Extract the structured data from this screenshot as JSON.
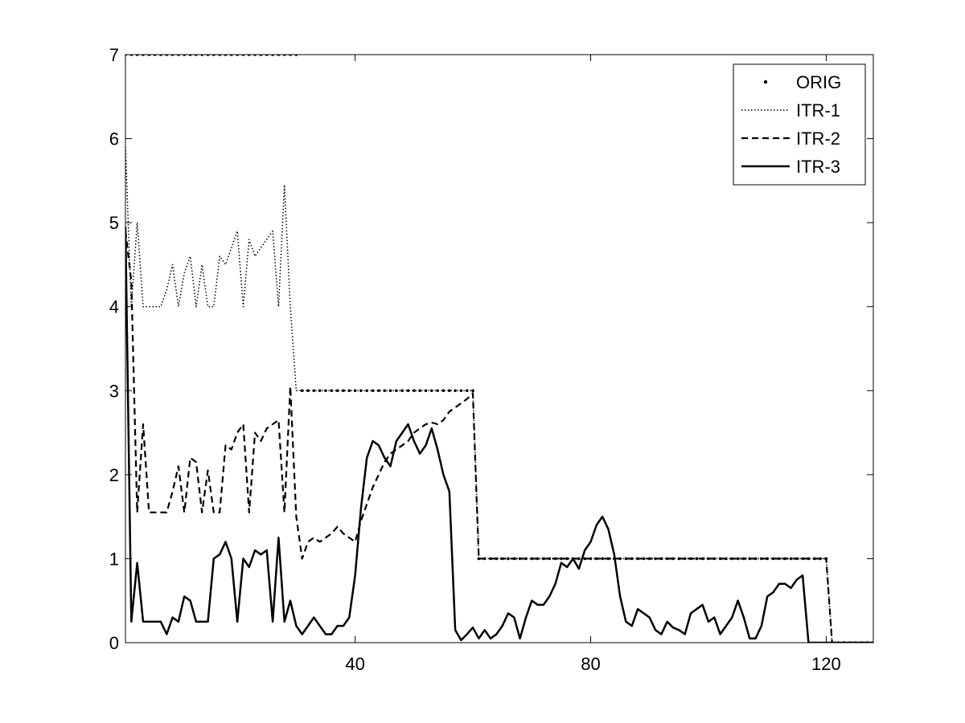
{
  "chart_data": {
    "type": "line",
    "title": "",
    "xlabel": "",
    "ylabel": "",
    "xlim": [
      1,
      128
    ],
    "ylim": [
      0,
      7
    ],
    "x_ticks": [
      40,
      80,
      120
    ],
    "x_tick_labels": [
      "40",
      "80",
      "120"
    ],
    "y_ticks": [
      0,
      1,
      2,
      3,
      4,
      5,
      6,
      7
    ],
    "y_tick_labels": [
      "0",
      "1",
      "2",
      "3",
      "4",
      "5",
      "6",
      "7"
    ],
    "grid": false,
    "legend_position": "top-right",
    "series": [
      {
        "name": "ORIG",
        "style": "dots",
        "color": "#000000",
        "x": [
          1,
          2,
          3,
          4,
          5,
          6,
          7,
          8,
          9,
          10,
          11,
          12,
          13,
          14,
          15,
          16,
          17,
          18,
          19,
          20,
          21,
          22,
          23,
          24,
          25,
          26,
          27,
          28,
          29,
          30,
          31,
          32,
          33,
          34,
          35,
          36,
          37,
          38,
          39,
          40,
          41,
          42,
          43,
          44,
          45,
          46,
          47,
          48,
          49,
          50,
          51,
          52,
          53,
          54,
          55,
          56,
          57,
          58,
          59,
          60,
          61,
          62,
          63,
          64,
          65,
          66,
          67,
          68,
          69,
          70,
          71,
          72,
          73,
          74,
          75,
          76,
          77,
          78,
          79,
          80,
          81,
          82,
          83,
          84,
          85,
          86,
          87,
          88,
          89,
          90,
          91,
          92,
          93,
          94,
          95,
          96,
          97,
          98,
          99,
          100,
          101,
          102,
          103,
          104,
          105,
          106,
          107,
          108,
          109,
          110,
          111,
          112,
          113,
          114,
          115,
          116,
          117,
          118,
          119,
          120,
          121,
          122,
          123,
          124,
          125,
          126,
          127,
          128
        ],
        "y": [
          7,
          7,
          7,
          7,
          7,
          7,
          7,
          7,
          7,
          7,
          7,
          7,
          7,
          7,
          7,
          7,
          7,
          7,
          7,
          7,
          7,
          7,
          7,
          7,
          7,
          7,
          7,
          7,
          7,
          7,
          3,
          3,
          3,
          3,
          3,
          3,
          3,
          3,
          3,
          3,
          3,
          3,
          3,
          3,
          3,
          3,
          3,
          3,
          3,
          3,
          3,
          3,
          3,
          3,
          3,
          3,
          3,
          3,
          3,
          3,
          1,
          1,
          1,
          1,
          1,
          1,
          1,
          1,
          1,
          1,
          1,
          1,
          1,
          1,
          1,
          1,
          1,
          1,
          1,
          1,
          1,
          1,
          1,
          1,
          1,
          1,
          1,
          1,
          1,
          1,
          1,
          1,
          1,
          1,
          1,
          1,
          1,
          1,
          1,
          1,
          1,
          1,
          1,
          1,
          1,
          1,
          1,
          1,
          1,
          1,
          1,
          1,
          1,
          1,
          1,
          1,
          1,
          1,
          1,
          1,
          0,
          0,
          0,
          0,
          0,
          0,
          0,
          0
        ]
      },
      {
        "name": "ITR-1",
        "style": "dotted",
        "color": "#000000",
        "x": [
          1,
          2,
          3,
          4,
          5,
          6,
          7,
          8,
          9,
          10,
          11,
          12,
          13,
          14,
          15,
          16,
          17,
          18,
          19,
          20,
          21,
          22,
          23,
          24,
          25,
          26,
          27,
          28,
          29,
          30,
          31,
          32,
          33,
          34,
          35,
          36,
          37,
          38,
          39,
          40,
          41,
          42,
          43,
          44,
          45,
          46,
          47,
          48,
          49,
          50,
          51,
          52,
          53,
          54,
          55,
          56,
          57,
          58,
          59,
          60,
          61,
          62,
          63,
          64,
          65,
          66,
          67,
          68,
          69,
          70,
          71,
          72,
          73,
          74,
          75,
          76,
          77,
          78,
          79,
          80,
          81,
          82,
          83,
          84,
          85,
          86,
          87,
          88,
          89,
          90,
          91,
          92,
          93,
          94,
          95,
          96,
          97,
          98,
          99,
          100,
          101,
          102,
          103,
          104,
          105,
          106,
          107,
          108,
          109,
          110,
          111,
          112,
          113,
          114,
          115,
          116,
          117,
          118,
          119,
          120,
          121,
          122,
          123,
          124,
          125,
          126,
          127,
          128
        ],
        "y": [
          5.9,
          4.0,
          5.0,
          4.0,
          4.0,
          4.0,
          4.0,
          4.2,
          4.5,
          4.0,
          4.4,
          4.6,
          4.0,
          4.5,
          4.0,
          4.0,
          4.6,
          4.5,
          4.7,
          4.9,
          4.0,
          4.8,
          4.6,
          4.7,
          4.8,
          4.9,
          4.0,
          5.45,
          4.0,
          3.0,
          3,
          3,
          3,
          3,
          3,
          3,
          3,
          3,
          3,
          3,
          3,
          3,
          3,
          3,
          3,
          3,
          3,
          3,
          3,
          3,
          3,
          3,
          3,
          3,
          3,
          3,
          3,
          3,
          3,
          3,
          1,
          1,
          1,
          1,
          1,
          1,
          1,
          1,
          1,
          1,
          1,
          1,
          1,
          1,
          1,
          1,
          1,
          1,
          1,
          1,
          1,
          1,
          1,
          1,
          1,
          1,
          1,
          1,
          1,
          1,
          1,
          1,
          1,
          1,
          1,
          1,
          1,
          1,
          1,
          1,
          1,
          1,
          1,
          1,
          1,
          1,
          1,
          1,
          1,
          1,
          1,
          1,
          1,
          1,
          1,
          1,
          1,
          1,
          1,
          1,
          0,
          0,
          0,
          0,
          0,
          0,
          0,
          0
        ]
      },
      {
        "name": "ITR-2",
        "style": "dashed",
        "color": "#000000",
        "x": [
          1,
          2,
          3,
          4,
          5,
          6,
          7,
          8,
          9,
          10,
          11,
          12,
          13,
          14,
          15,
          16,
          17,
          18,
          19,
          20,
          21,
          22,
          23,
          24,
          25,
          26,
          27,
          28,
          29,
          30,
          31,
          32,
          33,
          34,
          35,
          36,
          37,
          38,
          39,
          40,
          41,
          42,
          43,
          44,
          45,
          46,
          47,
          48,
          49,
          50,
          51,
          52,
          53,
          54,
          55,
          56,
          57,
          58,
          59,
          60,
          61,
          62,
          63,
          64,
          65,
          66,
          67,
          68,
          69,
          70,
          71,
          72,
          73,
          74,
          75,
          76,
          77,
          78,
          79,
          80,
          81,
          82,
          83,
          84,
          85,
          86,
          87,
          88,
          89,
          90,
          91,
          92,
          93,
          94,
          95,
          96,
          97,
          98,
          99,
          100,
          101,
          102,
          103,
          104,
          105,
          106,
          107,
          108,
          109,
          110,
          111,
          112,
          113,
          114,
          115,
          116,
          117,
          118,
          119,
          120,
          121,
          122,
          123,
          124,
          125,
          126,
          127,
          128
        ],
        "y": [
          4.9,
          4.3,
          1.55,
          2.6,
          1.55,
          1.55,
          1.55,
          1.55,
          1.8,
          2.1,
          1.55,
          2.2,
          2.15,
          1.55,
          2.05,
          1.55,
          1.55,
          2.35,
          2.3,
          2.5,
          2.6,
          1.55,
          2.5,
          2.4,
          2.55,
          2.6,
          2.65,
          1.55,
          3.05,
          1.5,
          1.0,
          1.2,
          1.25,
          1.2,
          1.25,
          1.3,
          1.38,
          1.3,
          1.25,
          1.2,
          1.45,
          1.65,
          1.85,
          2.0,
          2.15,
          2.25,
          2.3,
          2.35,
          2.4,
          2.5,
          2.55,
          2.6,
          2.62,
          2.6,
          2.65,
          2.75,
          2.8,
          2.85,
          2.9,
          2.97,
          1,
          1,
          1,
          1,
          1,
          1,
          1,
          1,
          1,
          1,
          1,
          1,
          1,
          1,
          1,
          1,
          1,
          1,
          1,
          1,
          1,
          1,
          1,
          1,
          1,
          1,
          1,
          1,
          1,
          1,
          1,
          1,
          1,
          1,
          1,
          1,
          1,
          1,
          1,
          1,
          1,
          1,
          1,
          1,
          1,
          1,
          1,
          1,
          1,
          1,
          1,
          1,
          1,
          1,
          1,
          1,
          1,
          1,
          1,
          1,
          0,
          0,
          0,
          0,
          0,
          0,
          0,
          0
        ]
      },
      {
        "name": "ITR-3",
        "style": "solid",
        "color": "#000000",
        "x": [
          1,
          2,
          3,
          4,
          5,
          6,
          7,
          8,
          9,
          10,
          11,
          12,
          13,
          14,
          15,
          16,
          17,
          18,
          19,
          20,
          21,
          22,
          23,
          24,
          25,
          26,
          27,
          28,
          29,
          30,
          31,
          32,
          33,
          34,
          35,
          36,
          37,
          38,
          39,
          40,
          41,
          42,
          43,
          44,
          45,
          46,
          47,
          48,
          49,
          50,
          51,
          52,
          53,
          54,
          55,
          56,
          57,
          58,
          59,
          60,
          61,
          62,
          63,
          64,
          65,
          66,
          67,
          68,
          69,
          70,
          71,
          72,
          73,
          74,
          75,
          76,
          77,
          78,
          79,
          80,
          81,
          82,
          83,
          84,
          85,
          86,
          87,
          88,
          89,
          90,
          91,
          92,
          93,
          94,
          95,
          96,
          97,
          98,
          99,
          100,
          101,
          102,
          103,
          104,
          105,
          106,
          107,
          108,
          109,
          110,
          111,
          112,
          113,
          114,
          115,
          116,
          117,
          118,
          119,
          120,
          121,
          122,
          123,
          124,
          125,
          126,
          127,
          128
        ],
        "y": [
          4.95,
          0.25,
          0.95,
          0.25,
          0.25,
          0.25,
          0.25,
          0.1,
          0.3,
          0.25,
          0.55,
          0.5,
          0.25,
          0.25,
          0.25,
          1.0,
          1.05,
          1.2,
          1.0,
          0.25,
          1.0,
          0.9,
          1.1,
          1.05,
          1.1,
          0.25,
          1.25,
          0.25,
          0.5,
          0.2,
          0.1,
          0.2,
          0.3,
          0.2,
          0.1,
          0.1,
          0.2,
          0.2,
          0.3,
          0.8,
          1.6,
          2.2,
          2.4,
          2.35,
          2.2,
          2.1,
          2.4,
          2.5,
          2.6,
          2.4,
          2.25,
          2.35,
          2.55,
          2.3,
          2.0,
          1.8,
          0.15,
          0.03,
          0.1,
          0.18,
          0.05,
          0.15,
          0.05,
          0.1,
          0.2,
          0.35,
          0.3,
          0.05,
          0.3,
          0.5,
          0.45,
          0.45,
          0.55,
          0.7,
          0.95,
          0.9,
          1.0,
          0.88,
          1.1,
          1.2,
          1.4,
          1.5,
          1.35,
          1.05,
          0.55,
          0.25,
          0.2,
          0.4,
          0.35,
          0.3,
          0.15,
          0.1,
          0.25,
          0.18,
          0.15,
          0.1,
          0.35,
          0.4,
          0.45,
          0.25,
          0.3,
          0.1,
          0.2,
          0.3,
          0.5,
          0.3,
          0.05,
          0.05,
          0.2,
          0.55,
          0.6,
          0.7,
          0.7,
          0.65,
          0.75,
          0.8,
          0,
          0,
          0,
          0,
          0,
          0,
          0,
          0,
          0,
          0,
          0,
          0
        ]
      }
    ]
  }
}
